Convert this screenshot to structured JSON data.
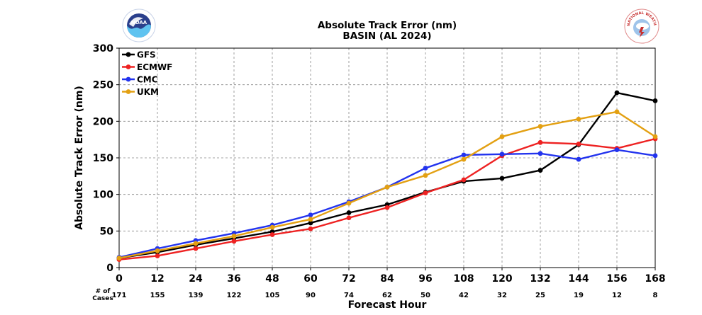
{
  "logos": {
    "left": {
      "name": "noaa-logo",
      "text": "NOAA"
    },
    "right": {
      "name": "nws-logo",
      "text": "NATIONAL WEATHER SERVICE"
    }
  },
  "chart_data": {
    "type": "line",
    "title": "Absolute Track Error (nm)",
    "subtitle": "BASIN (AL 2024)",
    "xlabel": "Forecast Hour",
    "ylabel": "Absolute Track Error (nm)",
    "xlim": [
      0,
      168
    ],
    "ylim": [
      0,
      300
    ],
    "x": [
      0,
      12,
      24,
      36,
      48,
      60,
      72,
      84,
      96,
      108,
      120,
      132,
      144,
      156,
      168
    ],
    "yticks": [
      0,
      50,
      100,
      150,
      200,
      250,
      300
    ],
    "grid": true,
    "legend": "top-left",
    "cases_label": "# of\nCases",
    "cases": [
      171,
      155,
      139,
      122,
      105,
      90,
      74,
      62,
      50,
      42,
      32,
      25,
      19,
      12,
      8
    ],
    "series": [
      {
        "name": "GFS",
        "color": "#000000",
        "values": [
          13,
          21,
          31,
          40,
          49,
          61,
          75,
          86,
          103,
          118,
          122,
          133,
          168,
          239,
          228
        ]
      },
      {
        "name": "ECMWF",
        "color": "#ee2222",
        "values": [
          11,
          16,
          26,
          36,
          45,
          53,
          68,
          82,
          102,
          120,
          153,
          171,
          169,
          163,
          176
        ]
      },
      {
        "name": "CMC",
        "color": "#2233ee",
        "values": [
          14,
          26,
          37,
          47,
          58,
          72,
          90,
          110,
          136,
          154,
          155,
          156,
          148,
          161,
          153
        ]
      },
      {
        "name": "UKM",
        "color": "#e3a012",
        "values": [
          13,
          23,
          33,
          43,
          55,
          66,
          88,
          110,
          126,
          148,
          179,
          193,
          203,
          213,
          179
        ]
      }
    ]
  }
}
